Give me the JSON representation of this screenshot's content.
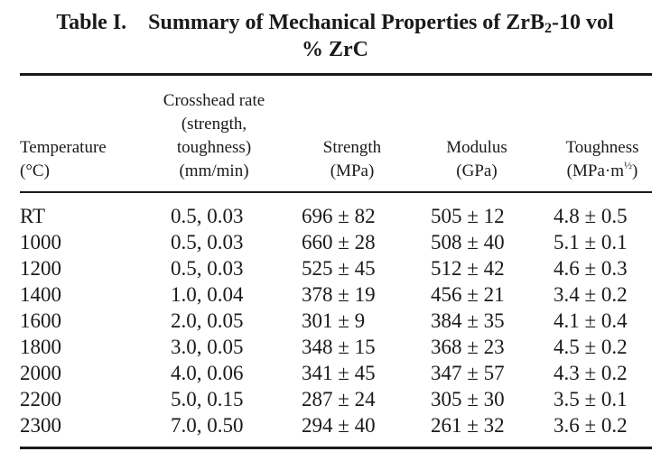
{
  "title": {
    "label": "Table I.",
    "text_a": "Summary of Mechanical Properties of ZrB",
    "sub": "2",
    "text_b": "-10 vol",
    "text_c": "% ZrC"
  },
  "headers": {
    "temperature": [
      "Temperature",
      "(°C)"
    ],
    "crosshead": [
      "Crosshead rate",
      "(strength,",
      "toughness)",
      "(mm/min)"
    ],
    "strength": [
      "Strength",
      "(MPa)"
    ],
    "modulus": [
      "Modulus",
      "(GPa)"
    ],
    "toughness": {
      "line1": "Toughness",
      "unit_a": "(MPa·m",
      "unit_sup": "½",
      "unit_b": ")"
    }
  },
  "rows": [
    {
      "temp": "RT",
      "rate": "0.5, 0.03",
      "strength": "696 ± 82",
      "modulus": "505 ± 12",
      "toughness": "4.8 ± 0.5"
    },
    {
      "temp": "1000",
      "rate": "0.5, 0.03",
      "strength": "660 ± 28",
      "modulus": "508 ± 40",
      "toughness": "5.1 ± 0.1"
    },
    {
      "temp": "1200",
      "rate": "0.5, 0.03",
      "strength": "525 ± 45",
      "modulus": "512 ± 42",
      "toughness": "4.6 ± 0.3"
    },
    {
      "temp": "1400",
      "rate": "1.0, 0.04",
      "strength": "378 ± 19",
      "modulus": "456 ± 21",
      "toughness": "3.4 ± 0.2"
    },
    {
      "temp": "1600",
      "rate": "2.0, 0.05",
      "strength": "301 ± 9",
      "modulus": "384 ± 35",
      "toughness": "4.1 ± 0.4"
    },
    {
      "temp": "1800",
      "rate": "3.0, 0.05",
      "strength": "348 ± 15",
      "modulus": "368 ± 23",
      "toughness": "4.5 ± 0.2"
    },
    {
      "temp": "2000",
      "rate": "4.0, 0.06",
      "strength": "341 ± 45",
      "modulus": "347 ± 57",
      "toughness": "4.3 ± 0.2"
    },
    {
      "temp": "2200",
      "rate": "5.0, 0.15",
      "strength": "287 ± 24",
      "modulus": "305 ± 30",
      "toughness": "3.5 ± 0.1"
    },
    {
      "temp": "2300",
      "rate": "7.0, 0.50",
      "strength": "294 ± 40",
      "modulus": "261 ± 32",
      "toughness": "3.6 ± 0.2"
    }
  ]
}
